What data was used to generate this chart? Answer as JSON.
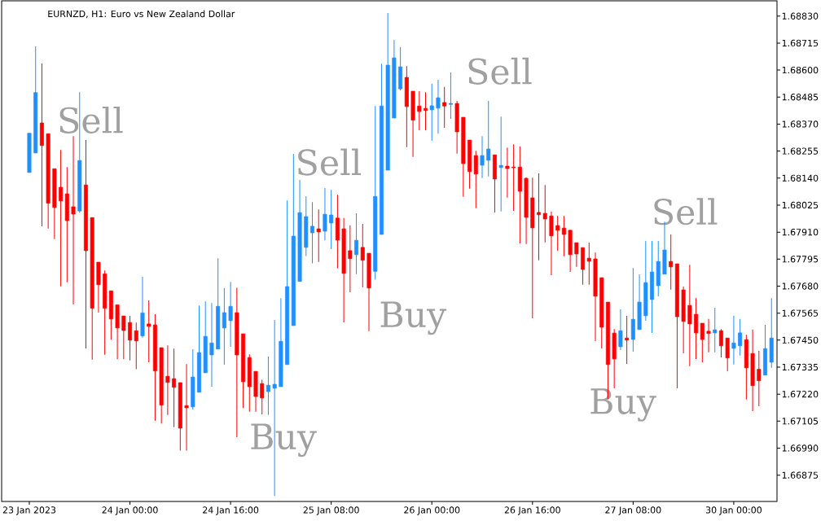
{
  "chart_data": {
    "type": "candlestick",
    "title": "EURNZD, H1: Euro vs New Zealand Dollar",
    "categories": [
      "23 Jan 2023",
      null,
      null,
      null,
      null,
      null,
      null,
      null,
      null,
      null,
      null,
      null,
      null,
      null,
      null,
      null,
      "24 Jan 00:00",
      null,
      null,
      null,
      null,
      null,
      null,
      null,
      null,
      null,
      null,
      null,
      null,
      null,
      null,
      null,
      "24 Jan 16:00",
      null,
      null,
      null,
      null,
      null,
      null,
      null,
      null,
      null,
      null,
      null,
      null,
      null,
      null,
      null,
      "25 Jan 08:00",
      null,
      null,
      null,
      null,
      null,
      null,
      null,
      null,
      null,
      null,
      null,
      null,
      null,
      null,
      null,
      "26 Jan 00:00",
      null,
      null,
      null,
      null,
      null,
      null,
      null,
      null,
      null,
      null,
      null,
      null,
      null,
      null,
      null,
      "26 Jan 16:00",
      null,
      null,
      null,
      null,
      null,
      null,
      null,
      null,
      null,
      null,
      null,
      null,
      null,
      null,
      null,
      "27 Jan 08:00",
      null,
      null,
      null,
      null,
      null,
      null,
      null,
      null,
      null,
      null,
      null,
      null,
      null,
      null,
      null,
      "30 Jan 00:00",
      null,
      null,
      null,
      null,
      null,
      null
    ],
    "ohlc": [
      [
        1.68164,
        1.68331,
        1.68164,
        1.68331
      ],
      [
        1.68247,
        1.68701,
        1.68247,
        1.68504
      ],
      [
        1.68375,
        1.68628,
        1.67935,
        1.68279
      ],
      [
        1.68329,
        1.68329,
        1.67925,
        1.68033
      ],
      [
        1.6818,
        1.6818,
        1.6788,
        1.68015
      ],
      [
        1.68101,
        1.6826,
        1.67679,
        1.68043
      ],
      [
        1.68073,
        1.68187,
        1.67696,
        1.67959
      ],
      [
        1.68018,
        1.68319,
        1.67602,
        1.67987
      ],
      [
        1.68,
        1.68506,
        1.67992,
        1.68215
      ],
      [
        1.68111,
        1.68302,
        1.67415,
        1.67831
      ],
      [
        1.67972,
        1.67972,
        1.67367,
        1.67586
      ],
      [
        1.67782,
        1.67782,
        1.67567,
        1.67686
      ],
      [
        1.67732,
        1.67747,
        1.67388,
        1.67586
      ],
      [
        1.6766,
        1.6766,
        1.67452,
        1.6754
      ],
      [
        1.676,
        1.676,
        1.67369,
        1.67502
      ],
      [
        1.67553,
        1.67553,
        1.67369,
        1.67491
      ],
      [
        1.67525,
        1.67553,
        1.67364,
        1.6745
      ],
      [
        1.6749,
        1.67525,
        1.67326,
        1.67447
      ],
      [
        1.67468,
        1.6772,
        1.67461,
        1.67566
      ],
      [
        1.67519,
        1.67619,
        1.67356,
        1.67509
      ],
      [
        1.67515,
        1.6756,
        1.67107,
        1.67319
      ],
      [
        1.67418,
        1.67418,
        1.67095,
        1.67173
      ],
      [
        1.67296,
        1.67428,
        1.67131,
        1.6727
      ],
      [
        1.67286,
        1.67414,
        1.67079,
        1.67249
      ],
      [
        1.67269,
        1.67269,
        1.6698,
        1.67075
      ],
      [
        1.67171,
        1.67348,
        1.6698,
        1.67162
      ],
      [
        1.67166,
        1.67411,
        1.67155,
        1.67293
      ],
      [
        1.67228,
        1.67598,
        1.67228,
        1.67397
      ],
      [
        1.67311,
        1.67615,
        1.67311,
        1.67466
      ],
      [
        1.67387,
        1.67608,
        1.67252,
        1.67438
      ],
      [
        1.67412,
        1.67799,
        1.67412,
        1.67594
      ],
      [
        1.67502,
        1.67671,
        1.67345,
        1.67567
      ],
      [
        1.67533,
        1.67698,
        1.67422,
        1.67594
      ],
      [
        1.67567,
        1.67673,
        1.67037,
        1.67387
      ],
      [
        1.67477,
        1.67477,
        1.67161,
        1.67273
      ],
      [
        1.67376,
        1.6739,
        1.67145,
        1.67252
      ],
      [
        1.67317,
        1.67317,
        1.67145,
        1.6721
      ],
      [
        1.67265,
        1.67281,
        1.67134,
        1.67204
      ],
      [
        1.67231,
        1.6738,
        1.67131,
        1.67258
      ],
      [
        1.67245,
        1.67536,
        1.66786,
        1.67262
      ],
      [
        1.67252,
        1.67629,
        1.67252,
        1.67445
      ],
      [
        1.67346,
        1.68045,
        1.67346,
        1.67678
      ],
      [
        1.67512,
        1.68243,
        1.67512,
        1.67893
      ],
      [
        1.677,
        1.68132,
        1.677,
        1.67993
      ],
      [
        1.67845,
        1.68063,
        1.67808,
        1.67976
      ],
      [
        1.67907,
        1.68038,
        1.67777,
        1.67935
      ],
      [
        1.67924,
        1.68007,
        1.67783,
        1.67911
      ],
      [
        1.67914,
        1.68098,
        1.67875,
        1.67986
      ],
      [
        1.67949,
        1.6809,
        1.67838,
        1.67983
      ],
      [
        1.6797,
        1.68069,
        1.67756,
        1.67876
      ],
      [
        1.67924,
        1.6797,
        1.67526,
        1.67734
      ],
      [
        1.67831,
        1.67939,
        1.67654,
        1.67797
      ],
      [
        1.67814,
        1.6799,
        1.67731,
        1.67875
      ],
      [
        1.67845,
        1.67945,
        1.67675,
        1.6779
      ],
      [
        1.6782,
        1.6782,
        1.67488,
        1.67672
      ],
      [
        1.67743,
        1.68447,
        1.67708,
        1.68062
      ],
      [
        1.679,
        1.68627,
        1.679,
        1.68447
      ],
      [
        1.68174,
        1.68843,
        1.68174,
        1.68621
      ],
      [
        1.68396,
        1.68728,
        1.68396,
        1.68652
      ],
      [
        1.6852,
        1.68697,
        1.68513,
        1.68614
      ],
      [
        1.68569,
        1.68617,
        1.68272,
        1.68445
      ],
      [
        1.6851,
        1.6851,
        1.6823,
        1.68387
      ],
      [
        1.68447,
        1.6851,
        1.68344,
        1.68424
      ],
      [
        1.68437,
        1.68506,
        1.68344,
        1.68428
      ],
      [
        1.68431,
        1.68542,
        1.68299,
        1.68448
      ],
      [
        1.68438,
        1.68559,
        1.68329,
        1.68482
      ],
      [
        1.68462,
        1.68528,
        1.68354,
        1.68447
      ],
      [
        1.68454,
        1.6859,
        1.68392,
        1.68458
      ],
      [
        1.68458,
        1.68469,
        1.68244,
        1.68337
      ],
      [
        1.68399,
        1.68399,
        1.6806,
        1.68202
      ],
      [
        1.68302,
        1.68302,
        1.68095,
        1.68168
      ],
      [
        1.68236,
        1.68256,
        1.68012,
        1.68157
      ],
      [
        1.68195,
        1.68319,
        1.6814,
        1.68236
      ],
      [
        1.68216,
        1.68469,
        1.68147,
        1.68264
      ],
      [
        1.68239,
        1.68239,
        1.67994,
        1.68136
      ],
      [
        1.68185,
        1.68402,
        1.67998,
        1.68194
      ],
      [
        1.68191,
        1.6827,
        1.68057,
        1.68181
      ],
      [
        1.68187,
        1.68284,
        1.68001,
        1.68184
      ],
      [
        1.68187,
        1.68275,
        1.67862,
        1.68084
      ],
      [
        1.68139,
        1.68143,
        1.67859,
        1.67973
      ],
      [
        1.68056,
        1.68142,
        1.67543,
        1.67928
      ],
      [
        1.67994,
        1.6816,
        1.6779,
        1.67984
      ],
      [
        1.6799,
        1.68111,
        1.67866,
        1.67966
      ],
      [
        1.67979,
        1.67997,
        1.67727,
        1.67894
      ],
      [
        1.67938,
        1.67979,
        1.6783,
        1.67918
      ],
      [
        1.67927,
        1.67979,
        1.67807,
        1.679
      ],
      [
        1.67918,
        1.67918,
        1.67741,
        1.67814
      ],
      [
        1.67865,
        1.67865,
        1.67762,
        1.67817
      ],
      [
        1.67844,
        1.67844,
        1.67686,
        1.67751
      ],
      [
        1.67799,
        1.67865,
        1.67686,
        1.67786
      ],
      [
        1.67796,
        1.67823,
        1.67446,
        1.67637
      ],
      [
        1.67716,
        1.67716,
        1.67415,
        1.67505
      ],
      [
        1.67612,
        1.67612,
        1.67199,
        1.67346
      ],
      [
        1.6748,
        1.67497,
        1.67245,
        1.6737
      ],
      [
        1.67422,
        1.67581,
        1.67408,
        1.6749
      ],
      [
        1.67459,
        1.67553,
        1.67349,
        1.6745
      ],
      [
        1.67453,
        1.67757,
        1.67401,
        1.67539
      ],
      [
        1.67495,
        1.6773,
        1.67495,
        1.67612
      ],
      [
        1.67554,
        1.67872,
        1.67533,
        1.67695
      ],
      [
        1.67623,
        1.67872,
        1.67481,
        1.6774
      ],
      [
        1.67682,
        1.67872,
        1.67637,
        1.67785
      ],
      [
        1.67731,
        1.67955,
        1.67731,
        1.67834
      ],
      [
        1.67785,
        1.679,
        1.67665,
        1.67762
      ],
      [
        1.67775,
        1.67775,
        1.67245,
        1.6755
      ],
      [
        1.67664,
        1.67678,
        1.67394,
        1.6753
      ],
      [
        1.67598,
        1.67771,
        1.67339,
        1.67519
      ],
      [
        1.6756,
        1.67629,
        1.6737,
        1.67481
      ],
      [
        1.67522,
        1.67522,
        1.67356,
        1.67453
      ],
      [
        1.67488,
        1.6754,
        1.67398,
        1.67478
      ],
      [
        1.67481,
        1.67588,
        1.67398,
        1.67494
      ],
      [
        1.6749,
        1.67497,
        1.67377,
        1.67426
      ],
      [
        1.67459,
        1.67459,
        1.67318,
        1.67374
      ],
      [
        1.67415,
        1.67554,
        1.67346,
        1.67438
      ],
      [
        1.67426,
        1.6754,
        1.67384,
        1.67481
      ],
      [
        1.67452,
        1.67473,
        1.67197,
        1.67332
      ],
      [
        1.67393,
        1.67495,
        1.67148,
        1.67256
      ],
      [
        1.67326,
        1.67404,
        1.67169,
        1.67277
      ],
      [
        1.67301,
        1.67515,
        1.67301,
        1.67414
      ],
      [
        1.67356,
        1.67629,
        1.67332,
        1.67459
      ]
    ],
    "colors": [
      "#1E90FF",
      "#1E90FF",
      "#FF0000",
      "#FF0000",
      "#FF0000",
      "#FF0000",
      "#FF0000",
      "#FF0000",
      "#1E90FF",
      "#FF0000",
      "#FF0000",
      "#FF0000",
      "#FF0000",
      "#FF0000",
      "#FF0000",
      "#FF0000",
      "#FF0000",
      "#FF0000",
      "#1E90FF",
      "#FF0000",
      "#FF0000",
      "#FF0000",
      "#FF0000",
      "#FF0000",
      "#FF0000",
      "#FF0000",
      "#1E90FF",
      "#1E90FF",
      "#1E90FF",
      "#1E90FF",
      "#1E90FF",
      "#1E90FF",
      "#1E90FF",
      "#FF0000",
      "#FF0000",
      "#FF0000",
      "#FF0000",
      "#FF0000",
      "#1E90FF",
      "#1E90FF",
      "#1E90FF",
      "#1E90FF",
      "#1E90FF",
      "#1E90FF",
      "#1E90FF",
      "#1E90FF",
      "#FF0000",
      "#1E90FF",
      "#1E90FF",
      "#FF0000",
      "#FF0000",
      "#FF0000",
      "#1E90FF",
      "#FF0000",
      "#FF0000",
      "#1E90FF",
      "#1E90FF",
      "#1E90FF",
      "#1E90FF",
      "#1E90FF",
      "#FF0000",
      "#FF0000",
      "#FF0000",
      "#FF0000",
      "#1E90FF",
      "#1E90FF",
      "#FF0000",
      "#1E90FF",
      "#FF0000",
      "#FF0000",
      "#FF0000",
      "#FF0000",
      "#1E90FF",
      "#1E90FF",
      "#FF0000",
      "#1E90FF",
      "#FF0000",
      "#FF0000",
      "#FF0000",
      "#FF0000",
      "#FF0000",
      "#FF0000",
      "#FF0000",
      "#FF0000",
      "#FF0000",
      "#FF0000",
      "#FF0000",
      "#FF0000",
      "#FF0000",
      "#FF0000",
      "#FF0000",
      "#FF0000",
      "#FF0000",
      "#FF0000",
      "#1E90FF",
      "#FF0000",
      "#1E90FF",
      "#1E90FF",
      "#1E90FF",
      "#1E90FF",
      "#1E90FF",
      "#1E90FF",
      "#FF0000",
      "#FF0000",
      "#FF0000",
      "#FF0000",
      "#FF0000",
      "#FF0000",
      "#FF0000",
      "#1E90FF",
      "#FF0000",
      "#FF0000",
      "#1E90FF",
      "#1E90FF",
      "#FF0000",
      "#FF0000",
      "#FF0000",
      "#1E90FF",
      "#1E90FF"
    ],
    "ylim": [
      1.66763,
      1.68895
    ],
    "yticks": [
      {
        "value": 1.66875,
        "label": "1.66875"
      },
      {
        "value": 1.6699,
        "label": "1.66990"
      },
      {
        "value": 1.67105,
        "label": "1.67105"
      },
      {
        "value": 1.6722,
        "label": "1.67220"
      },
      {
        "value": 1.67335,
        "label": "1.67335"
      },
      {
        "value": 1.6745,
        "label": "1.67450"
      },
      {
        "value": 1.67565,
        "label": "1.67565"
      },
      {
        "value": 1.6768,
        "label": "1.67680"
      },
      {
        "value": 1.67795,
        "label": "1.67795"
      },
      {
        "value": 1.6791,
        "label": "1.67910"
      },
      {
        "value": 1.68025,
        "label": "1.68025"
      },
      {
        "value": 1.6814,
        "label": "1.68140"
      },
      {
        "value": 1.68255,
        "label": "1.68255"
      },
      {
        "value": 1.6837,
        "label": "1.68370"
      },
      {
        "value": 1.68485,
        "label": "1.68485"
      },
      {
        "value": 1.686,
        "label": "1.68600"
      },
      {
        "value": 1.68715,
        "label": "1.68715"
      },
      {
        "value": 1.6883,
        "label": "1.68830"
      }
    ],
    "annotations": [
      "Sell",
      "Buy",
      "Sell",
      "Buy",
      "Sell",
      "Buy",
      "Sell"
    ]
  }
}
